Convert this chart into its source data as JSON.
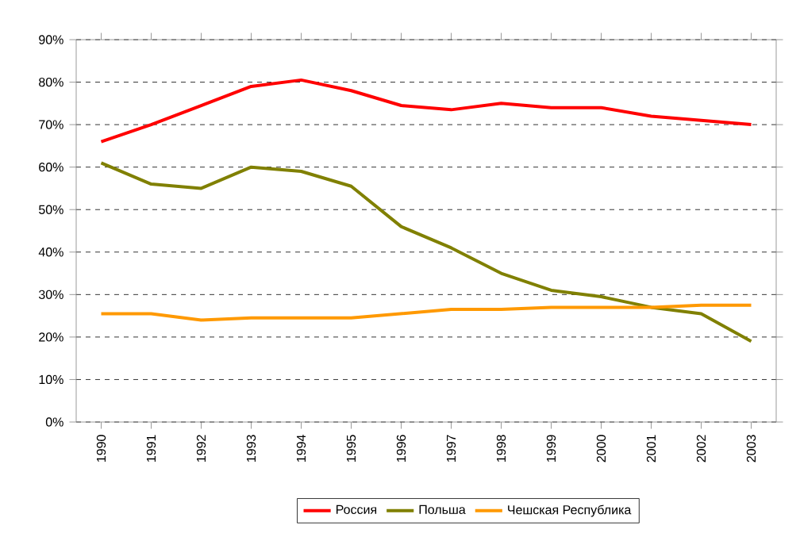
{
  "chart_data": {
    "type": "line",
    "categories": [
      "1990",
      "1991",
      "1992",
      "1993",
      "1994",
      "1995",
      "1996",
      "1997",
      "1998",
      "1999",
      "2000",
      "2001",
      "2002",
      "2003"
    ],
    "series": [
      {
        "name": "Россия",
        "color": "#ff0000",
        "values": [
          66,
          70,
          74.5,
          79,
          80.5,
          78,
          74.5,
          73.5,
          75,
          74,
          74,
          72,
          71,
          70
        ]
      },
      {
        "name": "Польша",
        "color": "#808000",
        "values": [
          61,
          56,
          55,
          60,
          59,
          55.5,
          46,
          41,
          35,
          31,
          29.5,
          27,
          25.5,
          19
        ]
      },
      {
        "name": "Чешская Республика",
        "color": "#ff9900",
        "values": [
          25.5,
          25.5,
          24,
          24.5,
          24.5,
          24.5,
          25.5,
          26.5,
          26.5,
          27,
          27,
          27,
          27.5,
          27.5
        ]
      }
    ],
    "ylim": [
      0,
      90
    ],
    "yticks": [
      {
        "value": 0,
        "label": "0%"
      },
      {
        "value": 10,
        "label": "10%"
      },
      {
        "value": 20,
        "label": "20%"
      },
      {
        "value": 30,
        "label": "30%"
      },
      {
        "value": 40,
        "label": "40%"
      },
      {
        "value": 50,
        "label": "50%"
      },
      {
        "value": 60,
        "label": "60%"
      },
      {
        "value": 70,
        "label": "70%"
      },
      {
        "value": 80,
        "label": "80%"
      },
      {
        "value": 90,
        "label": "90%"
      }
    ],
    "grid": "y",
    "legend": "bottom",
    "marker": "none",
    "line_style": "solid"
  }
}
